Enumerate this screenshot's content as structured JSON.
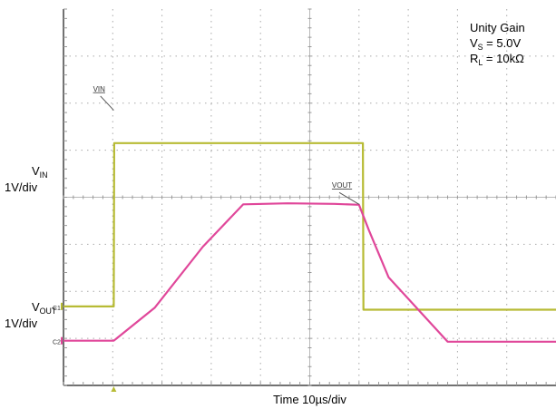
{
  "chart_data": {
    "type": "line",
    "title": "",
    "xlabel": "Time 10µs/div",
    "x_units": "division",
    "y_units": "division",
    "xlim": [
      0,
      10
    ],
    "ylim": [
      0,
      8
    ],
    "grid": true,
    "annotations": [
      {
        "id": "unity",
        "text": "Unity Gain"
      },
      {
        "id": "vs",
        "main": "V",
        "sub": "S",
        "rest": " = 5.0V"
      },
      {
        "id": "rl",
        "main": "R",
        "sub": "L",
        "rest": " = 10kΩ"
      }
    ],
    "left_labels": [
      {
        "id": "vin-scale",
        "main": "V",
        "sub": "IN",
        "scale": "1V/div"
      },
      {
        "id": "vout-scale",
        "main": "V",
        "sub": "OUT",
        "scale": "1V/div"
      }
    ],
    "series": [
      {
        "name": "VIN",
        "marker": "C1",
        "color": "#b7bb34",
        "x": [
          0,
          1.02,
          1.03,
          6.08,
          6.09,
          10
        ],
        "y": [
          1.68,
          1.68,
          5.15,
          5.15,
          1.61,
          1.61
        ]
      },
      {
        "name": "VOUT",
        "marker": "C2",
        "color": "#e0479a",
        "x": [
          0,
          1.02,
          1.85,
          2.83,
          3.65,
          4.55,
          5.5,
          6.0,
          6.2,
          6.6,
          7.8,
          10
        ],
        "y": [
          0.95,
          0.95,
          1.65,
          2.95,
          3.85,
          3.87,
          3.86,
          3.84,
          3.3,
          2.3,
          0.93,
          0.93
        ]
      }
    ]
  }
}
